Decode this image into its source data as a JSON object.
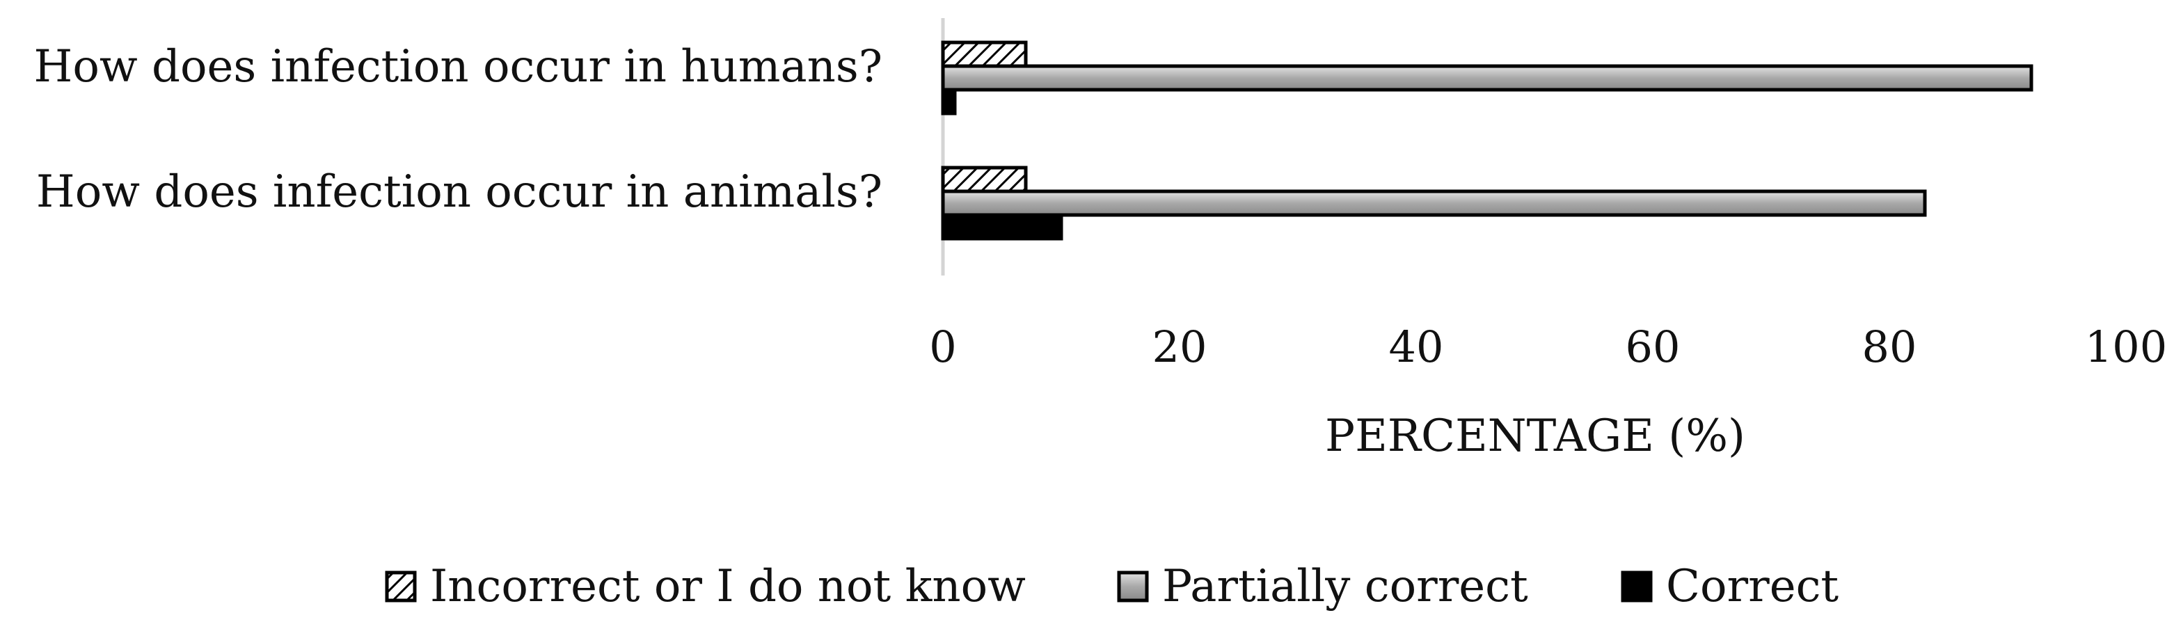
{
  "chart_data": {
    "type": "bar",
    "orientation": "horizontal",
    "categories": [
      "How does infection occur in humans?",
      "How does infection occur in animals?"
    ],
    "series": [
      {
        "name": "Incorrect or I do not know",
        "values": [
          7,
          7
        ],
        "fill": "hatched",
        "color": "#000000"
      },
      {
        "name": "Partially correct",
        "values": [
          92,
          83
        ],
        "fill": "gradient-gray",
        "color": "#a6a6a6"
      },
      {
        "name": "Correct",
        "values": [
          1,
          10
        ],
        "fill": "solid",
        "color": "#000000"
      }
    ],
    "xlabel": "PERCENTAGE (%)",
    "xlim": [
      0,
      100
    ],
    "xticks": [
      0,
      20,
      40,
      60,
      80,
      100
    ],
    "grid": false,
    "legend_position": "bottom"
  }
}
